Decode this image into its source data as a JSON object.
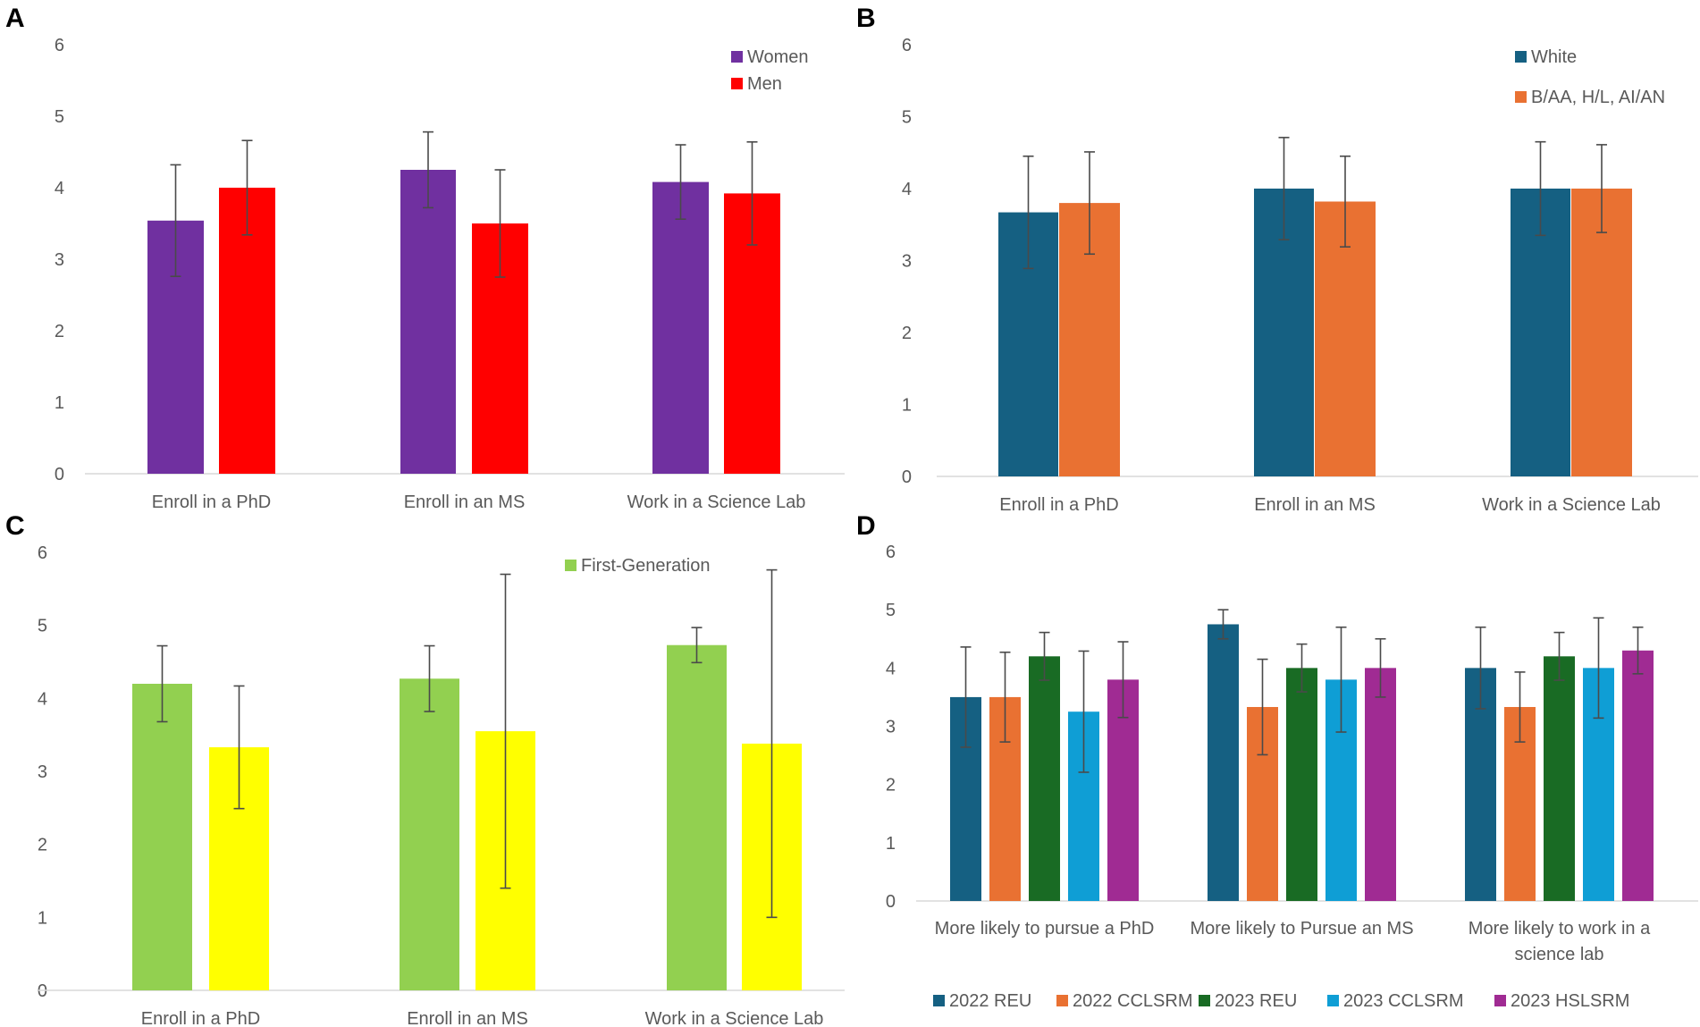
{
  "chart_data": [
    {
      "panel": "A",
      "type": "bar",
      "categories": [
        "Enroll in a PhD",
        "Enroll in an MS",
        "Work in a Science Lab"
      ],
      "series": [
        {
          "name": "Women",
          "color": "#7030A0",
          "values": [
            3.54,
            4.25,
            4.08
          ],
          "errors": [
            0.78,
            0.53,
            0.52
          ]
        },
        {
          "name": "Men",
          "color": "#FF0000",
          "values": [
            4.0,
            3.5,
            3.92
          ],
          "errors": [
            0.66,
            0.75,
            0.72
          ]
        }
      ],
      "yticks": [
        "0",
        "1",
        "2",
        "3",
        "4",
        "5",
        "6"
      ],
      "ylim": [
        0,
        6
      ],
      "legend": "top-right"
    },
    {
      "panel": "B",
      "type": "bar",
      "categories": [
        "Enroll in a PhD",
        "Enroll in an MS",
        "Work in a Science Lab"
      ],
      "series": [
        {
          "name": "White",
          "color": "#156082",
          "values": [
            3.67,
            4.0,
            4.0
          ],
          "errors": [
            0.78,
            0.71,
            0.65
          ]
        },
        {
          "name": "B/AA, H/L, AI/AN",
          "color": "#E97132",
          "values": [
            3.8,
            3.82,
            4.0
          ],
          "errors": [
            0.71,
            0.63,
            0.61
          ]
        }
      ],
      "yticks": [
        "0",
        "1",
        "2",
        "3",
        "4",
        "5",
        "6"
      ],
      "ylim": [
        0,
        6
      ],
      "legend": "top-right"
    },
    {
      "panel": "C",
      "type": "bar",
      "categories": [
        "Enroll in a PhD",
        "Enroll in an MS",
        "Work in a Science Lab"
      ],
      "series": [
        {
          "name": "First-Generation",
          "color": "#92D050",
          "values": [
            4.2,
            4.27,
            4.73
          ],
          "errors": [
            0.52,
            0.45,
            0.24
          ]
        },
        {
          "name": "",
          "color": "#FFFF00",
          "values": [
            3.33,
            3.55,
            3.38
          ],
          "errors": [
            0.84,
            2.15,
            2.38
          ]
        }
      ],
      "yticks": [
        "0",
        "1",
        "2",
        "3",
        "4",
        "5",
        "6"
      ],
      "ylim": [
        0,
        6
      ],
      "legend": "top-right"
    },
    {
      "panel": "D",
      "type": "bar",
      "categories": [
        "More likely to pursue a PhD",
        "More likely to Pursue an MS",
        "More likely to work in a science lab"
      ],
      "category_lines": [
        [
          "More likely to pursue a PhD"
        ],
        [
          "More likely to Pursue an MS"
        ],
        [
          "More likely to work in a",
          "science lab"
        ]
      ],
      "series": [
        {
          "name": "2022 REU",
          "color": "#156082",
          "values": [
            3.5,
            4.75,
            4.0
          ],
          "errors": [
            0.86,
            0.25,
            0.7
          ]
        },
        {
          "name": "2022 CCLSRM",
          "color": "#E97132",
          "values": [
            3.5,
            3.33,
            3.33
          ],
          "errors": [
            0.77,
            0.82,
            0.6
          ]
        },
        {
          "name": "2023 REU",
          "color": "#196B24",
          "values": [
            4.2,
            4.0,
            4.2
          ],
          "errors": [
            0.41,
            0.41,
            0.41
          ]
        },
        {
          "name": "2023 CCLSRM",
          "color": "#0F9ED5",
          "values": [
            3.25,
            3.8,
            4.0
          ],
          "errors": [
            1.04,
            0.9,
            0.86
          ]
        },
        {
          "name": "2023 HSLSRM",
          "color": "#A02B93",
          "values": [
            3.8,
            4.0,
            4.3
          ],
          "errors": [
            0.65,
            0.5,
            0.4
          ]
        }
      ],
      "yticks": [
        "0",
        "1",
        "2",
        "3",
        "4",
        "5",
        "6"
      ],
      "ylim": [
        0,
        6
      ],
      "legend": "bottom"
    }
  ]
}
